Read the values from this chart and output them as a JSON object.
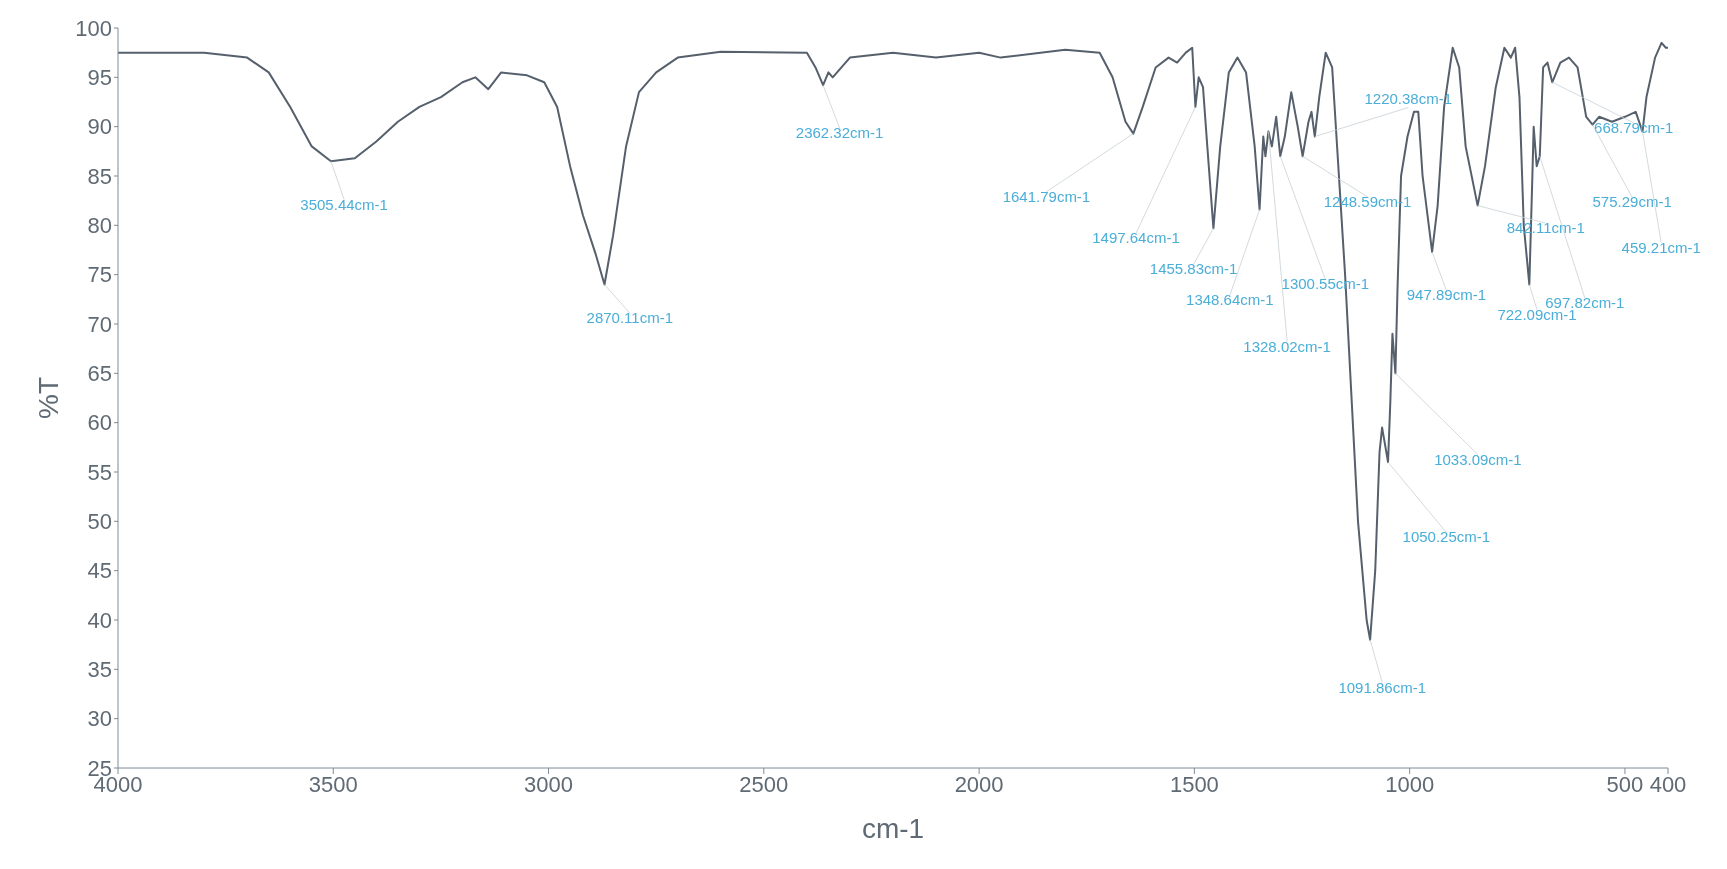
{
  "chart_data": {
    "type": "line",
    "xlabel": "cm-1",
    "ylabel": "%T",
    "xlim": [
      4000,
      400
    ],
    "xticks": [
      4000,
      3500,
      3000,
      2500,
      2000,
      1500,
      1000,
      500,
      400
    ],
    "ylim": [
      25,
      100
    ],
    "yticks": [
      25,
      30,
      35,
      40,
      45,
      50,
      55,
      60,
      65,
      70,
      75,
      80,
      85,
      90,
      95,
      100
    ],
    "grid": false,
    "marker": "none",
    "line_style": "solid",
    "series": [
      {
        "color": "#56606c",
        "x": [
          4000,
          3800,
          3700,
          3650,
          3600,
          3550,
          3505.44,
          3450,
          3400,
          3350,
          3300,
          3250,
          3200,
          3170,
          3140,
          3110,
          3050,
          3010,
          2980,
          2950,
          2920,
          2890,
          2870.11,
          2850,
          2820,
          2790,
          2750,
          2700,
          2600,
          2400,
          2380,
          2362.32,
          2350,
          2340,
          2300,
          2200,
          2100,
          2000,
          1950,
          1800,
          1720,
          1690,
          1660,
          1641.79,
          1620,
          1590,
          1560,
          1540,
          1520,
          1505,
          1497.64,
          1490,
          1480,
          1470,
          1455.83,
          1440,
          1420,
          1400,
          1380,
          1360,
          1348.64,
          1340,
          1335,
          1328.02,
          1320,
          1310,
          1300.55,
          1290,
          1275,
          1260,
          1248.59,
          1235,
          1228,
          1220.38,
          1210,
          1195,
          1180,
          1150,
          1120,
          1100,
          1091.86,
          1080,
          1070,
          1064,
          1050.25,
          1045,
          1040,
          1033.09,
          1028,
          1020,
          1005,
          990,
          980,
          970,
          947.89,
          935,
          920,
          900,
          885,
          870,
          842.11,
          825,
          800,
          780,
          765,
          755,
          745,
          735,
          722.09,
          715,
          712,
          705,
          697.82,
          690,
          680,
          668.79,
          650,
          630,
          610,
          590,
          575.29,
          560,
          530,
          500,
          475,
          459.21,
          450,
          430,
          415,
          405,
          400
        ],
        "values": [
          97.5,
          97.5,
          97,
          95.5,
          92,
          88,
          86.5,
          86.8,
          88.5,
          90.5,
          92,
          93,
          94.5,
          95,
          93.8,
          95.5,
          95.2,
          94.5,
          92,
          86,
          81,
          77,
          74,
          79,
          88,
          93.5,
          95.5,
          97,
          97.6,
          97.5,
          96,
          94.2,
          95.5,
          95,
          97,
          97.5,
          97,
          97.5,
          97,
          97.8,
          97.5,
          95,
          90.5,
          89.3,
          92,
          96,
          97,
          96.5,
          97.5,
          98,
          92,
          95,
          94,
          88,
          79.7,
          88,
          95.5,
          97,
          95.5,
          88,
          81.6,
          89,
          87,
          89.5,
          88,
          91,
          87,
          89,
          93.5,
          90,
          87,
          90.5,
          91.5,
          89,
          93,
          97.5,
          96,
          75,
          50,
          40,
          38,
          45,
          57,
          59.5,
          56,
          62,
          69,
          65,
          74,
          85,
          89,
          91.5,
          91.5,
          85,
          77.3,
          82,
          92,
          98,
          96,
          88,
          82,
          86,
          94,
          98,
          97,
          98,
          93,
          80,
          74,
          85,
          90,
          86,
          87,
          96,
          96.5,
          94.5,
          96.5,
          97,
          96,
          91,
          90.2,
          91,
          90.5,
          91,
          91.5,
          89.5,
          93,
          97,
          98.5,
          98,
          98
        ]
      }
    ],
    "annotations": [
      {
        "text": "3505.44cm-1",
        "x": 3505.44,
        "y": 86.5
      },
      {
        "text": "2870.11cm-1",
        "x": 2870.11,
        "y": 74
      },
      {
        "text": "2362.32cm-1",
        "x": 2362.32,
        "y": 94.2
      },
      {
        "text": "1641.79cm-1",
        "x": 1641.79,
        "y": 89.3
      },
      {
        "text": "1497.64cm-1",
        "x": 1497.64,
        "y": 92
      },
      {
        "text": "1455.83cm-1",
        "x": 1455.83,
        "y": 79.7
      },
      {
        "text": "1348.64cm-1",
        "x": 1348.64,
        "y": 81.6
      },
      {
        "text": "1328.02cm-1",
        "x": 1328.02,
        "y": 89.5
      },
      {
        "text": "1300.55cm-1",
        "x": 1300.55,
        "y": 87
      },
      {
        "text": "1248.59cm-1",
        "x": 1248.59,
        "y": 87
      },
      {
        "text": "1220.38cm-1",
        "x": 1220.38,
        "y": 89
      },
      {
        "text": "1091.86cm-1",
        "x": 1091.86,
        "y": 38
      },
      {
        "text": "1050.25cm-1",
        "x": 1050.25,
        "y": 56
      },
      {
        "text": "1033.09cm-1",
        "x": 1033.09,
        "y": 65
      },
      {
        "text": "947.89cm-1",
        "x": 947.89,
        "y": 77.3
      },
      {
        "text": "842.11cm-1",
        "x": 842.11,
        "y": 82
      },
      {
        "text": "722.09cm-1",
        "x": 722.09,
        "y": 74
      },
      {
        "text": "697.82cm-1",
        "x": 697.82,
        "y": 87
      },
      {
        "text": "668.79cm-1",
        "x": 668.79,
        "y": 94.5
      },
      {
        "text": "575.29cm-1",
        "x": 575.29,
        "y": 90.2
      },
      {
        "text": "459.21cm-1",
        "x": 459.21,
        "y": 89.5
      }
    ]
  }
}
